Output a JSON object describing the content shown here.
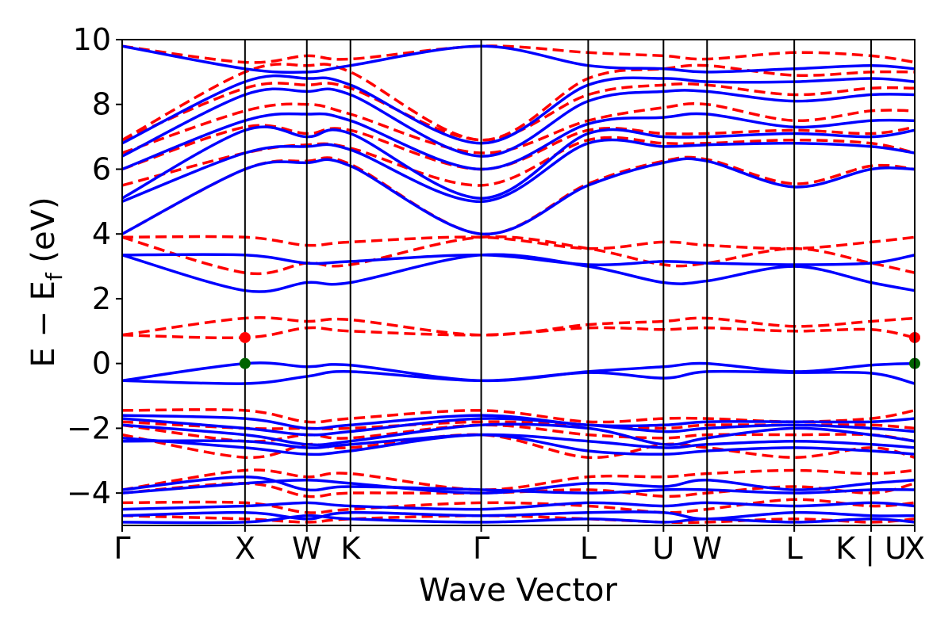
{
  "chart_data": {
    "type": "line",
    "xlabel": "Wave Vector",
    "ylabel": "E − E",
    "ylabel_sub": "f",
    "ylabel_unit": " (eV)",
    "ylim": [
      -5,
      10
    ],
    "yticks": [
      -4,
      -2,
      0,
      2,
      4,
      6,
      8,
      10
    ],
    "ytick_labels": [
      "−4",
      "−2",
      "0",
      "2",
      "4",
      "6",
      "8",
      "10"
    ],
    "xlim": [
      0,
      100
    ],
    "kpoints": [
      {
        "label": "Γ",
        "x": 0
      },
      {
        "label": "X",
        "x": 15.5
      },
      {
        "label": "W",
        "x": 23.3
      },
      {
        "label": "K",
        "x": 28.8
      },
      {
        "label": "Γ",
        "x": 45.3
      },
      {
        "label": "L",
        "x": 58.8
      },
      {
        "label": "U",
        "x": 68.3
      },
      {
        "label": "W",
        "x": 73.8
      },
      {
        "label": "L",
        "x": 84.8
      },
      {
        "label": "K | U",
        "x": 94.5
      },
      {
        "label": "X",
        "x": 100
      }
    ],
    "colors": {
      "spin_up": "#0000ff",
      "spin_down": "#ff0000",
      "vbm": "#006400",
      "cbm": "#ff0000"
    },
    "series": [
      {
        "style": "solid",
        "color": "#0000ff",
        "bands": [
          [
            -4.9,
            -4.9,
            -4.7,
            -4.8,
            -4.9,
            -4.8,
            -4.9,
            -4.8,
            -4.9,
            -4.8,
            -4.9
          ],
          [
            -4.7,
            -4.6,
            -4.8,
            -4.6,
            -4.7,
            -4.6,
            -4.6,
            -4.8,
            -4.6,
            -4.7,
            -4.7
          ],
          [
            -4.5,
            -4.4,
            -4.3,
            -4.4,
            -4.5,
            -4.3,
            -4.4,
            -4.3,
            -4.4,
            -4.3,
            -4.4
          ],
          [
            -4.0,
            -3.7,
            -3.6,
            -3.7,
            -4.0,
            -3.7,
            -3.8,
            -3.6,
            -3.9,
            -3.7,
            -3.6
          ],
          [
            -3.9,
            -3.5,
            -3.9,
            -3.8,
            -3.9,
            -4.0,
            -3.9,
            -3.9,
            -4.0,
            -3.9,
            -3.9
          ],
          [
            -2.4,
            -2.4,
            -2.6,
            -2.5,
            -2.2,
            -2.4,
            -2.6,
            -2.5,
            -2.4,
            -2.5,
            -2.6
          ],
          [
            -2.3,
            -2.6,
            -2.8,
            -2.7,
            -2.2,
            -2.7,
            -2.8,
            -2.7,
            -2.6,
            -2.7,
            -2.8
          ],
          [
            -1.9,
            -2.2,
            -2.5,
            -2.4,
            -1.9,
            -2.0,
            -2.5,
            -2.3,
            -2.0,
            -2.2,
            -2.4
          ],
          [
            -1.7,
            -2.0,
            -2.2,
            -2.1,
            -1.7,
            -1.9,
            -2.1,
            -2.0,
            -1.9,
            -2.0,
            -2.1
          ],
          [
            -1.6,
            -1.7,
            -2.0,
            -1.9,
            -1.6,
            -1.9,
            -1.9,
            -1.8,
            -1.8,
            -1.8,
            -1.7
          ],
          [
            -0.53,
            -0.62,
            -0.4,
            -0.25,
            -0.53,
            -0.28,
            -0.45,
            -0.25,
            -0.28,
            -0.3,
            -0.62
          ],
          [
            -0.53,
            0.0,
            -0.1,
            -0.05,
            -0.53,
            -0.25,
            -0.1,
            0.0,
            -0.25,
            -0.05,
            0.0
          ],
          [
            3.35,
            2.25,
            2.5,
            2.5,
            3.35,
            3.0,
            2.5,
            2.55,
            3.0,
            2.5,
            2.25
          ],
          [
            3.35,
            3.35,
            3.1,
            3.15,
            3.35,
            3.05,
            3.15,
            3.1,
            3.05,
            3.1,
            3.35
          ],
          [
            4.0,
            6.0,
            6.2,
            6.1,
            4.0,
            5.5,
            6.2,
            6.25,
            5.45,
            6.0,
            6.0
          ],
          [
            5.0,
            6.5,
            6.7,
            6.6,
            5.0,
            6.8,
            6.7,
            6.75,
            6.8,
            6.7,
            6.5
          ],
          [
            5.1,
            7.2,
            7.0,
            7.1,
            5.1,
            7.1,
            7.0,
            7.0,
            7.1,
            7.0,
            7.2
          ],
          [
            6.0,
            7.5,
            7.7,
            7.5,
            6.0,
            7.4,
            7.6,
            7.7,
            7.3,
            7.5,
            7.5
          ],
          [
            6.4,
            8.3,
            8.4,
            8.3,
            6.4,
            8.1,
            8.4,
            8.4,
            8.1,
            8.3,
            8.3
          ],
          [
            6.8,
            8.7,
            8.8,
            8.6,
            6.8,
            8.6,
            8.8,
            8.7,
            8.7,
            8.8,
            8.7
          ],
          [
            9.8,
            9.1,
            9.0,
            9.2,
            9.8,
            9.2,
            9.1,
            9.0,
            9.1,
            9.2,
            9.1
          ]
        ]
      },
      {
        "style": "dashed",
        "color": "#ff0000",
        "bands": [
          [
            -4.7,
            -4.8,
            -4.9,
            -4.8,
            -4.7,
            -4.8,
            -4.9,
            -4.9,
            -4.8,
            -4.9,
            -4.8
          ],
          [
            -4.3,
            -4.3,
            -4.6,
            -4.5,
            -4.3,
            -4.4,
            -4.6,
            -4.5,
            -4.2,
            -4.4,
            -4.3
          ],
          [
            -4.0,
            -3.7,
            -4.1,
            -4.0,
            -4.0,
            -3.9,
            -4.1,
            -4.0,
            -3.8,
            -4.0,
            -3.7
          ],
          [
            -3.9,
            -3.3,
            -3.5,
            -3.4,
            -3.9,
            -3.5,
            -3.5,
            -3.4,
            -3.3,
            -3.4,
            -3.3
          ],
          [
            -2.2,
            -2.9,
            -2.5,
            -2.6,
            -2.2,
            -2.9,
            -2.5,
            -2.6,
            -2.9,
            -2.6,
            -2.9
          ],
          [
            -1.9,
            -2.4,
            -2.2,
            -2.3,
            -1.9,
            -2.2,
            -2.3,
            -2.2,
            -2.2,
            -2.2,
            -2.4
          ],
          [
            -1.8,
            -2.0,
            -2.0,
            -2.0,
            -1.8,
            -1.9,
            -2.0,
            -1.9,
            -1.9,
            -1.9,
            -2.0
          ],
          [
            -1.45,
            -1.45,
            -1.8,
            -1.7,
            -1.45,
            -1.8,
            -1.7,
            -1.7,
            -1.8,
            -1.7,
            -1.45
          ],
          [
            0.88,
            0.8,
            1.1,
            1.0,
            0.88,
            1.1,
            1.05,
            1.1,
            1.0,
            1.05,
            0.8
          ],
          [
            0.88,
            1.4,
            1.3,
            1.35,
            0.88,
            1.2,
            1.3,
            1.4,
            1.15,
            1.3,
            1.4
          ],
          [
            3.9,
            2.8,
            3.1,
            3.05,
            3.9,
            3.55,
            3.05,
            3.1,
            3.55,
            3.1,
            2.8
          ],
          [
            3.9,
            3.9,
            3.65,
            3.75,
            3.9,
            3.55,
            3.75,
            3.65,
            3.55,
            3.75,
            3.9
          ],
          [
            4.0,
            6.0,
            6.25,
            6.15,
            4.0,
            5.55,
            6.25,
            6.3,
            5.55,
            6.1,
            6.0
          ],
          [
            5.5,
            6.5,
            6.75,
            6.65,
            5.5,
            6.9,
            6.8,
            6.8,
            6.9,
            6.8,
            6.5
          ],
          [
            6.0,
            7.3,
            7.1,
            7.2,
            6.0,
            7.2,
            7.1,
            7.1,
            7.2,
            7.1,
            7.3
          ],
          [
            6.5,
            7.8,
            8.0,
            7.7,
            6.5,
            7.5,
            7.9,
            8.0,
            7.5,
            7.8,
            7.8
          ],
          [
            6.9,
            8.5,
            8.6,
            8.5,
            6.9,
            8.3,
            8.6,
            8.6,
            8.3,
            8.5,
            8.5
          ],
          [
            6.9,
            9.0,
            9.2,
            9.0,
            6.9,
            8.8,
            9.1,
            9.2,
            8.9,
            9.0,
            9.0
          ],
          [
            9.8,
            9.3,
            9.5,
            9.4,
            9.8,
            9.6,
            9.5,
            9.4,
            9.6,
            9.5,
            9.3
          ]
        ]
      }
    ],
    "markers": [
      {
        "kind": "vbm",
        "x": 15.5,
        "y": 0.0,
        "color": "#006400"
      },
      {
        "kind": "vbm",
        "x": 100,
        "y": 0.0,
        "color": "#006400"
      },
      {
        "kind": "cbm",
        "x": 15.5,
        "y": 0.8,
        "color": "#ff0000"
      },
      {
        "kind": "cbm",
        "x": 100,
        "y": 0.8,
        "color": "#ff0000"
      }
    ]
  }
}
